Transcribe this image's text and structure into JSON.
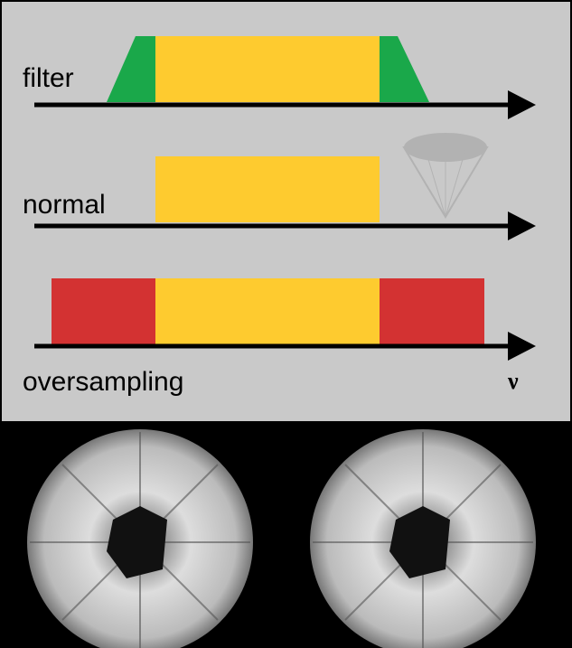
{
  "labels": {
    "filter": "filter",
    "normal": "normal",
    "oversampling": "oversampling",
    "axis": "ν"
  }
}
